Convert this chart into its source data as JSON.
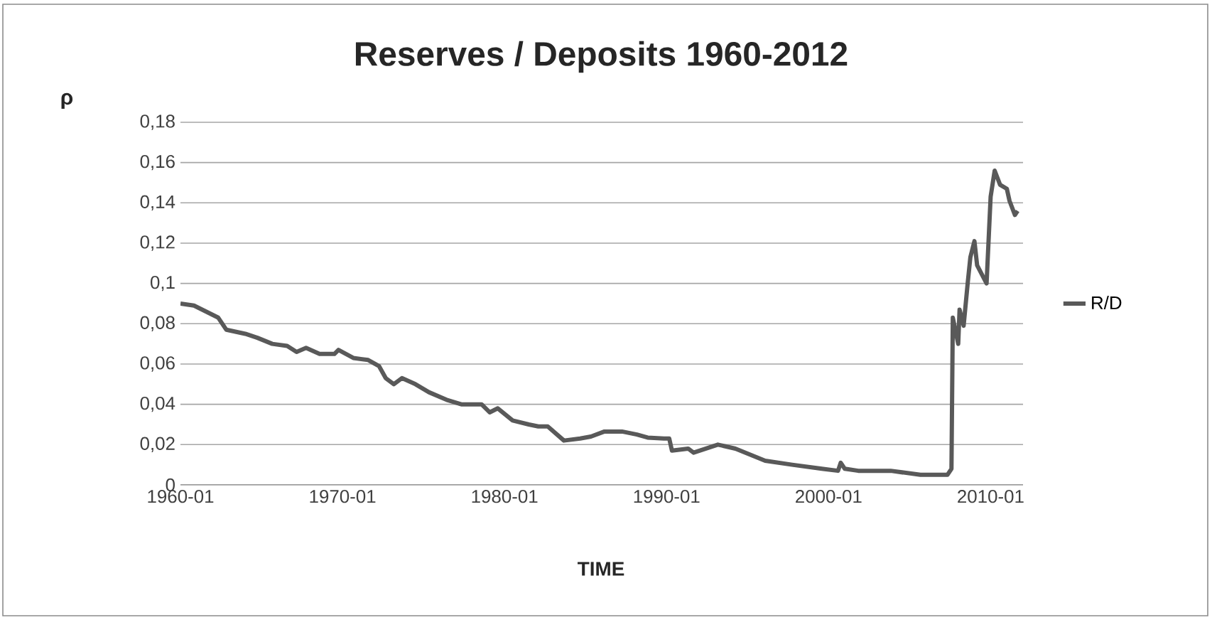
{
  "chart_data": {
    "type": "line",
    "title": "Reserves / Deposits 1960-2012",
    "xlabel": "TIME",
    "ylabel": "ρ",
    "x": [
      "1960-01",
      "1960-11",
      "1961-08",
      "1962-05",
      "1962-11",
      "1964-01",
      "1964-10",
      "1965-09",
      "1966-08",
      "1967-03",
      "1967-10",
      "1968-08",
      "1969-07",
      "1969-10",
      "1970-09",
      "1971-08",
      "1972-04",
      "1972-09",
      "1973-03",
      "1973-09",
      "1974-07",
      "1975-05",
      "1976-07",
      "1977-05",
      "1978-08",
      "1979-02",
      "1979-08",
      "1980-07",
      "1981-07",
      "1982-02",
      "1982-09",
      "1983-09",
      "1984-09",
      "1985-05",
      "1986-03",
      "1987-04",
      "1988-03",
      "1988-11",
      "1989-11",
      "1990-03",
      "1990-05",
      "1991-05",
      "1991-09",
      "1993-03",
      "1994-04",
      "1996-02",
      "1997-10",
      "1999-08",
      "2000-08",
      "2000-10",
      "2001-01",
      "2001-11",
      "2003-11",
      "2005-09",
      "2007-05",
      "2007-08",
      "2007-09",
      "2008-01",
      "2008-02",
      "2008-05",
      "2008-08",
      "2008-10",
      "2009-01",
      "2009-03",
      "2009-10",
      "2010-01",
      "2010-04",
      "2010-08",
      "2011-01",
      "2011-03",
      "2011-07",
      "2011-09"
    ],
    "series": [
      {
        "name": "R/D",
        "color": "#595959",
        "values": [
          0.09,
          0.089,
          0.086,
          0.083,
          0.077,
          0.075,
          0.073,
          0.07,
          0.069,
          0.066,
          0.068,
          0.065,
          0.065,
          0.067,
          0.063,
          0.062,
          0.059,
          0.053,
          0.05,
          0.053,
          0.05,
          0.046,
          0.042,
          0.04,
          0.04,
          0.036,
          0.038,
          0.032,
          0.03,
          0.029,
          0.029,
          0.022,
          0.023,
          0.024,
          0.0265,
          0.0265,
          0.025,
          0.0235,
          0.023,
          0.023,
          0.017,
          0.018,
          0.016,
          0.02,
          0.018,
          0.012,
          0.01,
          0.008,
          0.007,
          0.011,
          0.008,
          0.007,
          0.007,
          0.005,
          0.005,
          0.008,
          0.083,
          0.07,
          0.087,
          0.079,
          0.1,
          0.113,
          0.121,
          0.109,
          0.1,
          0.143,
          0.156,
          0.149,
          0.147,
          0.141,
          0.134,
          0.136
        ]
      }
    ],
    "xlim": [
      "1960-01",
      "2012-01"
    ],
    "xticks": [
      "1960-01",
      "1970-01",
      "1980-01",
      "1990-01",
      "2000-01",
      "2010-01"
    ],
    "ylim": [
      0,
      0.18
    ],
    "yticks": [
      0,
      {
        "value": 0.02,
        "label": "0,02"
      },
      {
        "value": 0.04,
        "label": "0,04"
      },
      {
        "value": 0.06,
        "label": "0,06"
      },
      {
        "value": 0.08,
        "label": "0,08"
      },
      {
        "value": 0.1,
        "label": "0,1"
      },
      {
        "value": 0.12,
        "label": "0,12"
      },
      {
        "value": 0.14,
        "label": "0,14"
      },
      {
        "value": 0.16,
        "label": "0,16"
      },
      {
        "value": 0.18,
        "label": "0,18"
      }
    ],
    "grid": "y",
    "legend": "right"
  }
}
